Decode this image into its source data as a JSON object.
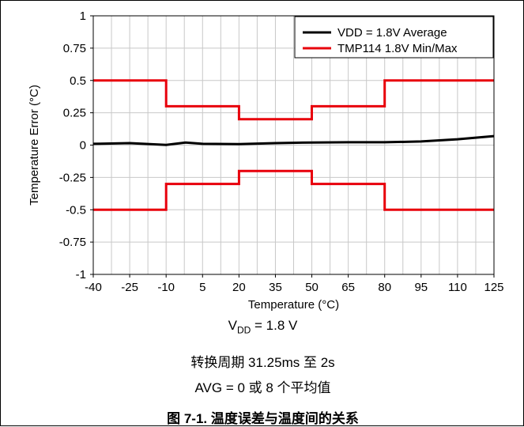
{
  "chart_data": {
    "type": "line",
    "xlabel": "Temperature (°C)",
    "ylabel": "Temperature Error (°C)",
    "xlim": [
      -40,
      125
    ],
    "ylim": [
      -1,
      1
    ],
    "x_ticks": [
      -40,
      -25,
      -10,
      5,
      20,
      35,
      50,
      65,
      80,
      95,
      110,
      125
    ],
    "x_tick_labels": [
      "-40",
      "-25",
      "-10",
      "5",
      "20",
      "35",
      "50",
      "65",
      "80",
      "95",
      "110",
      "125"
    ],
    "y_ticks": [
      1,
      0.75,
      0.5,
      0.25,
      0,
      -0.25,
      -0.5,
      -0.75,
      -1
    ],
    "y_tick_labels": [
      "1",
      "0.75",
      "0.5",
      "0.25",
      "0",
      "-0.25",
      "-0.5",
      "-0.75",
      "-1"
    ],
    "x_minor_step": 7.5,
    "grid": true,
    "legend_position": "top-right",
    "series": [
      {
        "name": "VDD = 1.8V Average",
        "color": "#000000",
        "x": [
          -40,
          -25,
          -10,
          -2,
          5,
          20,
          35,
          50,
          65,
          80,
          95,
          110,
          125
        ],
        "y": [
          0.01,
          0.015,
          0.002,
          0.02,
          0.01,
          0.008,
          0.015,
          0.02,
          0.022,
          0.022,
          0.028,
          0.045,
          0.07
        ]
      },
      {
        "name": "TMP114 1.8V Min/Max",
        "color": "#e8000b",
        "x": [
          -40,
          -10,
          -10,
          20,
          20,
          50,
          50,
          80,
          80,
          125
        ],
        "y": [
          0.5,
          0.5,
          0.3,
          0.3,
          0.2,
          0.2,
          0.3,
          0.3,
          0.5,
          0.5
        ]
      },
      {
        "name": "",
        "color": "#e8000b",
        "x": [
          -40,
          -10,
          -10,
          20,
          20,
          50,
          50,
          80,
          80,
          125
        ],
        "y": [
          -0.5,
          -0.5,
          -0.3,
          -0.3,
          -0.2,
          -0.2,
          -0.3,
          -0.3,
          -0.5,
          -0.5
        ]
      }
    ]
  },
  "caption": {
    "vdd_main": "V",
    "vdd_sub": "DD",
    "vdd_rest": " = 1.8 V",
    "conversion": "转换周期 31.25ms 至 2s",
    "avg": "AVG = 0 或 8 个平均值",
    "title": "图 7-1. 温度误差与温度间的关系"
  }
}
